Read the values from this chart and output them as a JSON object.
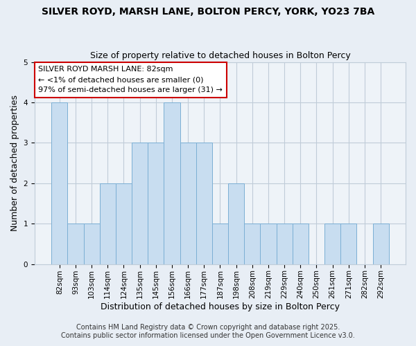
{
  "title": "SILVER ROYD, MARSH LANE, BOLTON PERCY, YORK, YO23 7BA",
  "subtitle": "Size of property relative to detached houses in Bolton Percy",
  "xlabel": "Distribution of detached houses by size in Bolton Percy",
  "ylabel": "Number of detached properties",
  "categories": [
    "82sqm",
    "93sqm",
    "103sqm",
    "114sqm",
    "124sqm",
    "135sqm",
    "145sqm",
    "156sqm",
    "166sqm",
    "177sqm",
    "187sqm",
    "198sqm",
    "208sqm",
    "219sqm",
    "229sqm",
    "240sqm",
    "250sqm",
    "261sqm",
    "271sqm",
    "282sqm",
    "292sqm"
  ],
  "values": [
    4,
    1,
    1,
    2,
    2,
    3,
    3,
    4,
    3,
    3,
    1,
    2,
    1,
    1,
    1,
    1,
    0,
    1,
    1,
    0,
    1
  ],
  "bar_color": "#c8ddf0",
  "bar_edge_color": "#7bafd4",
  "ylim": [
    0,
    5
  ],
  "yticks": [
    0,
    1,
    2,
    3,
    4,
    5
  ],
  "annotation_box_text": "SILVER ROYD MARSH LANE: 82sqm\n← <1% of detached houses are smaller (0)\n97% of semi-detached houses are larger (31) →",
  "annotation_box_edgecolor": "#cc0000",
  "annotation_box_facecolor": "#ffffff",
  "footer_line1": "Contains HM Land Registry data © Crown copyright and database right 2025.",
  "footer_line2": "Contains public sector information licensed under the Open Government Licence v3.0.",
  "background_color": "#e8eef5",
  "plot_background_color": "#eef3f8",
  "grid_color": "#c0ccd8",
  "title_fontsize": 10,
  "subtitle_fontsize": 9,
  "axis_label_fontsize": 9,
  "tick_fontsize": 7.5,
  "annotation_fontsize": 8,
  "footer_fontsize": 7
}
